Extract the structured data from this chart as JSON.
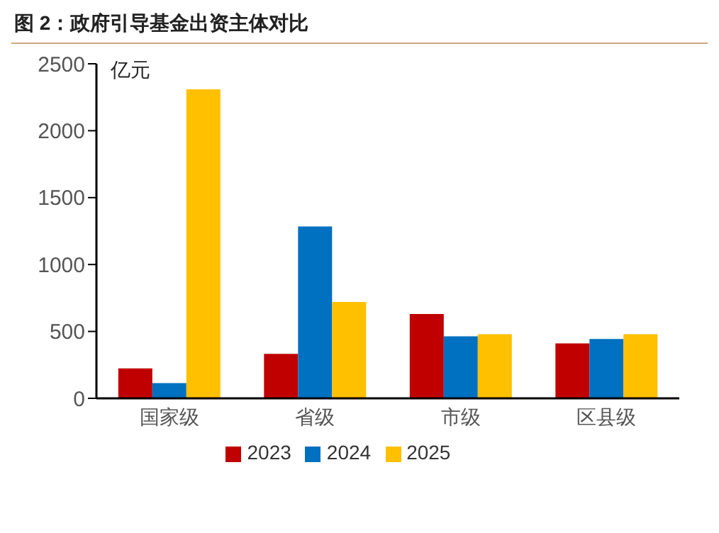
{
  "chart_data": {
    "type": "bar",
    "title": "图 2：政府引导基金出资主体对比",
    "ylabel": "亿元",
    "categories": [
      "国家级",
      "省级",
      "市级",
      "区县级"
    ],
    "series": [
      {
        "name": "2023",
        "color": "#c00000",
        "values": [
          224,
          333,
          630,
          410
        ]
      },
      {
        "name": "2024",
        "color": "#0070c0",
        "values": [
          114,
          1285,
          463,
          443
        ]
      },
      {
        "name": "2025",
        "color": "#ffc000",
        "values": [
          2309,
          720,
          480,
          480
        ]
      }
    ],
    "ylim": [
      0,
      2500
    ],
    "yticks": [
      0,
      500,
      1000,
      1500,
      2000,
      2500
    ],
    "grid": false,
    "legend": "bottom"
  }
}
